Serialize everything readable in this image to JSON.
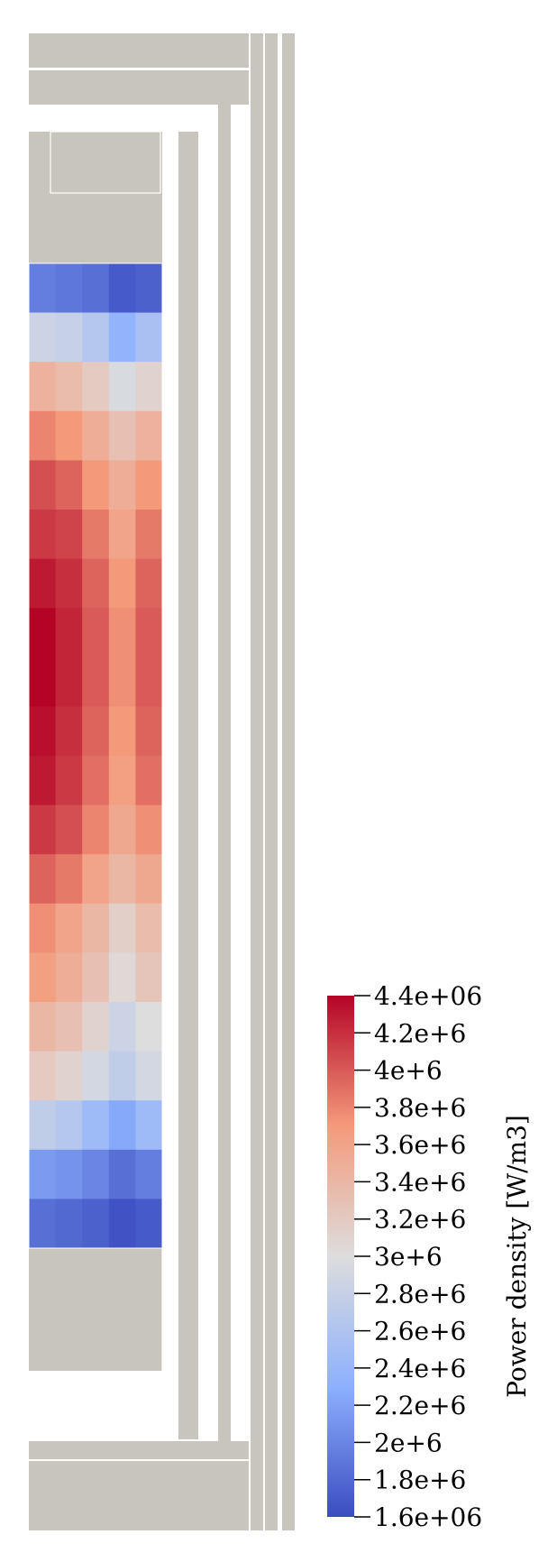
{
  "chart_data": {
    "type": "heatmap",
    "title": "",
    "colorbar": {
      "title": "Power density [W/m3]",
      "colormap": "Cool to Warm",
      "range": [
        1600000,
        4400000
      ],
      "ticks": [
        {
          "value": 4400000,
          "label": "4.4e+06"
        },
        {
          "value": 4200000,
          "label": "4.2e+6"
        },
        {
          "value": 4000000,
          "label": "4e+6"
        },
        {
          "value": 3800000,
          "label": "3.8e+6"
        },
        {
          "value": 3600000,
          "label": "3.6e+6"
        },
        {
          "value": 3400000,
          "label": "3.4e+6"
        },
        {
          "value": 3200000,
          "label": "3.2e+6"
        },
        {
          "value": 3000000,
          "label": "3e+6"
        },
        {
          "value": 2800000,
          "label": "2.8e+6"
        },
        {
          "value": 2600000,
          "label": "2.6e+6"
        },
        {
          "value": 2400000,
          "label": "2.4e+6"
        },
        {
          "value": 2200000,
          "label": "2.2e+6"
        },
        {
          "value": 2000000,
          "label": "2e+6"
        },
        {
          "value": 1800000,
          "label": "1.8e+6"
        },
        {
          "value": 1600000,
          "label": "1.6e+06"
        }
      ],
      "colors": [
        "#3b4cc0",
        "#dddddd",
        "#b40426"
      ]
    },
    "grid": false,
    "legend": "right",
    "unused_region_color": "#c8c5bf",
    "cells": [
      [
        1950000.0,
        1900000.0,
        1850000.0,
        1700000.0,
        1750000.0
      ],
      [
        2850000.0,
        2800000.0,
        2650000.0,
        2350000.0,
        2550000.0
      ],
      [
        3450000.0,
        3350000.0,
        3200000.0,
        2950000.0,
        3100000.0
      ],
      [
        3800000.0,
        3700000.0,
        3500000.0,
        3300000.0,
        3450000.0
      ],
      [
        4050000.0,
        3950000.0,
        3700000.0,
        3500000.0,
        3700000.0
      ],
      [
        4150000.0,
        4100000.0,
        3850000.0,
        3600000.0,
        3850000.0
      ],
      [
        4300000.0,
        4200000.0,
        3950000.0,
        3700000.0,
        3950000.0
      ],
      [
        4400000.0,
        4250000.0,
        4000000.0,
        3750000.0,
        4000000.0
      ],
      [
        4400000.0,
        4250000.0,
        4000000.0,
        3750000.0,
        4000000.0
      ],
      [
        4350000.0,
        4200000.0,
        3950000.0,
        3700000.0,
        3950000.0
      ],
      [
        4300000.0,
        4150000.0,
        3900000.0,
        3650000.0,
        3900000.0
      ],
      [
        4150000.0,
        4050000.0,
        3800000.0,
        3550000.0,
        3750000.0
      ],
      [
        3950000.0,
        3850000.0,
        3600000.0,
        3400000.0,
        3550000.0
      ],
      [
        3750000.0,
        3600000.0,
        3400000.0,
        3150000.0,
        3350000.0
      ],
      [
        3650000.0,
        3500000.0,
        3300000.0,
        3050000.0,
        3250000.0
      ],
      [
        3400000.0,
        3300000.0,
        3100000.0,
        2850000.0,
        3000000.0
      ],
      [
        3200000.0,
        3100000.0,
        2900000.0,
        2750000.0,
        2900000.0
      ],
      [
        2750000.0,
        2650000.0,
        2450000.0,
        2250000.0,
        2450000.0
      ],
      [
        2150000.0,
        2100000.0,
        2000000.0,
        1850000.0,
        1950000.0
      ],
      [
        1850000.0,
        1800000.0,
        1750000.0,
        1650000.0,
        1700000.0
      ]
    ]
  }
}
